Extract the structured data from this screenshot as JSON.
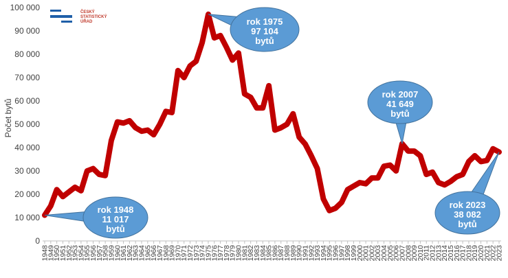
{
  "logo": {
    "lines": [
      "ČESKÝ",
      "STATISTICKÝ",
      "ÚŘAD"
    ],
    "bar_color": "#1f5fa8",
    "text_color": "#c0392b"
  },
  "chart_data": {
    "type": "line",
    "ylabel": "Počet bytů",
    "xlabel": "",
    "ylim": [
      0,
      100000
    ],
    "y_ticks": [
      0,
      10000,
      20000,
      30000,
      40000,
      50000,
      60000,
      70000,
      80000,
      90000,
      100000
    ],
    "y_tick_labels": [
      "0",
      "10 000",
      "20 000",
      "30 000",
      "40 000",
      "50 000",
      "60 000",
      "70 000",
      "80 000",
      "90 000",
      "100 000"
    ],
    "grid": false,
    "line_color": "#c00000",
    "x": [
      1948,
      1949,
      1950,
      1951,
      1952,
      1953,
      1954,
      1955,
      1956,
      1957,
      1958,
      1959,
      1960,
      1961,
      1962,
      1963,
      1964,
      1965,
      1966,
      1967,
      1968,
      1969,
      1970,
      1971,
      1972,
      1973,
      1974,
      1975,
      1976,
      1977,
      1978,
      1979,
      1980,
      1981,
      1982,
      1983,
      1984,
      1985,
      1986,
      1987,
      1988,
      1989,
      1990,
      1991,
      1992,
      1993,
      1994,
      1995,
      1996,
      1997,
      1998,
      1999,
      2000,
      2001,
      2002,
      2003,
      2004,
      2005,
      2006,
      2007,
      2008,
      2009,
      2010,
      2011,
      2012,
      2013,
      2014,
      2015,
      2016,
      2017,
      2018,
      2019,
      2020,
      2021,
      2022,
      2023
    ],
    "series": [
      {
        "values": [
          11017,
          15000,
          22000,
          19000,
          21000,
          23000,
          21500,
          30000,
          31000,
          28500,
          28000,
          43000,
          51000,
          50500,
          51500,
          48500,
          47000,
          47500,
          45500,
          50000,
          55500,
          55000,
          73000,
          70000,
          75000,
          77000,
          85000,
          97104,
          87000,
          88000,
          83000,
          77500,
          80500,
          63000,
          61500,
          57000,
          57000,
          66500,
          47500,
          48500,
          50000,
          54500,
          44500,
          41500,
          36500,
          31000,
          18000,
          13000,
          14000,
          16500,
          22000,
          23500,
          25000,
          24500,
          27000,
          27000,
          32000,
          32500,
          30000,
          41649,
          38500,
          38500,
          36500,
          28500,
          29500,
          25000,
          24000,
          25500,
          27500,
          28500,
          34000,
          36500,
          34000,
          34500,
          39500,
          38082
        ]
      }
    ],
    "annotations": [
      {
        "year": 1948,
        "lines": [
          "rok 1948",
          "11 017",
          "bytů"
        ]
      },
      {
        "year": 1975,
        "lines": [
          "rok 1975",
          "97 104",
          "bytů"
        ]
      },
      {
        "year": 2007,
        "lines": [
          "rok 2007",
          "41 649",
          "bytů"
        ]
      },
      {
        "year": 2023,
        "lines": [
          "rok 2023",
          "38 082",
          "bytů"
        ]
      }
    ],
    "callout_color": "#5b9bd5"
  }
}
